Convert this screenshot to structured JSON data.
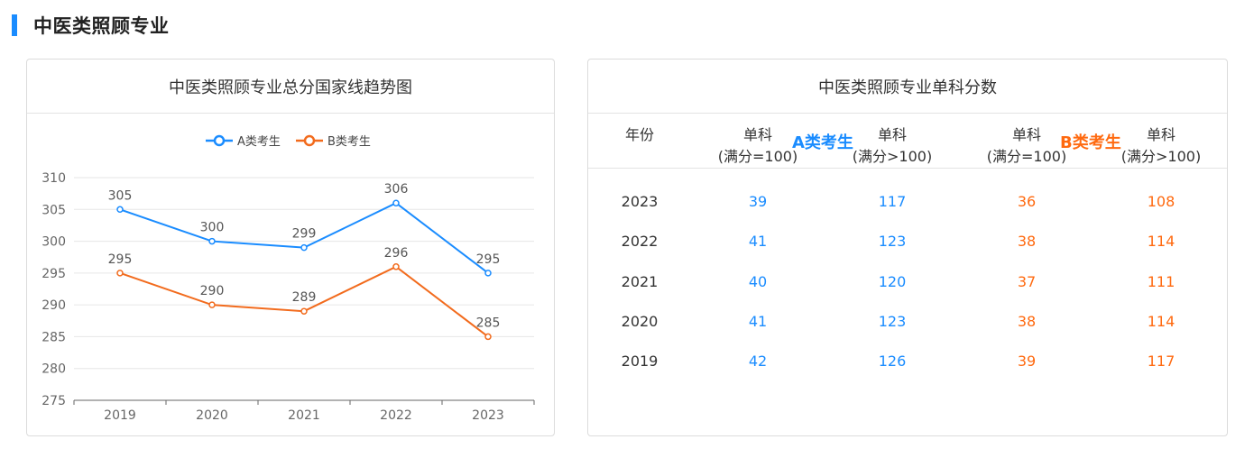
{
  "page_title": "中医类照顾专业",
  "left_card": {
    "title": "中医类照顾专业总分国家线趋势图"
  },
  "right_card": {
    "title": "中医类照顾专业单科分数",
    "group_a": "A类考生",
    "group_b": "B类考生",
    "headers": [
      {
        "line1": "年份",
        "line2": ""
      },
      {
        "line1": "单科",
        "line2": "(满分=100)"
      },
      {
        "line1": "单科",
        "line2": "(满分>100)"
      },
      {
        "line1": "单科",
        "line2": "(满分=100)"
      },
      {
        "line1": "单科",
        "line2": "(满分>100)"
      }
    ],
    "rows": [
      {
        "year": "2023",
        "a1": "39",
        "a2": "117",
        "b1": "36",
        "b2": "108"
      },
      {
        "year": "2022",
        "a1": "41",
        "a2": "123",
        "b1": "38",
        "b2": "114"
      },
      {
        "year": "2021",
        "a1": "40",
        "a2": "120",
        "b1": "37",
        "b2": "111"
      },
      {
        "year": "2020",
        "a1": "41",
        "a2": "123",
        "b1": "38",
        "b2": "114"
      },
      {
        "year": "2019",
        "a1": "42",
        "a2": "126",
        "b1": "39",
        "b2": "117"
      }
    ]
  },
  "colors": {
    "series_a": "#1a8cff",
    "series_b": "#f26b1d",
    "accent": "#1a8cff"
  },
  "chart_data": {
    "type": "line",
    "categories": [
      "2019",
      "2020",
      "2021",
      "2022",
      "2023"
    ],
    "series": [
      {
        "name": "A类考生",
        "values": [
          305,
          300,
          299,
          306,
          295
        ]
      },
      {
        "name": "B类考生",
        "values": [
          295,
          290,
          289,
          296,
          285
        ]
      }
    ],
    "ylim": [
      275,
      310
    ],
    "yticks": [
      275,
      280,
      285,
      290,
      295,
      300,
      305,
      310
    ],
    "grid": true,
    "legend": "top-center",
    "data_labels": true
  }
}
